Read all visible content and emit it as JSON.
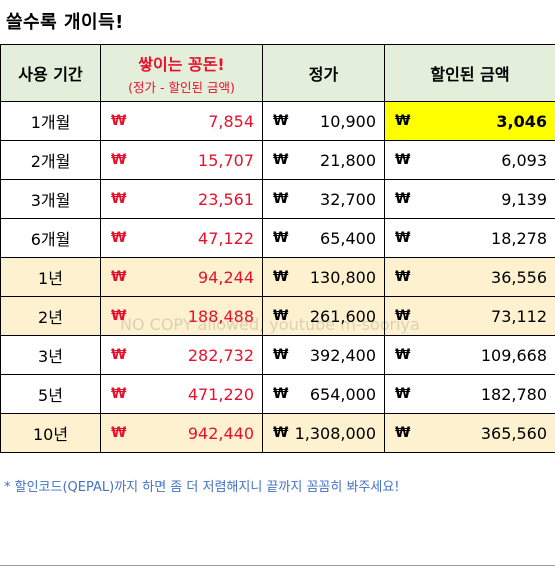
{
  "title": "쓸수록 개이득!",
  "header": {
    "period": "사용 기간",
    "savings": "쌓이는 꽁돈!",
    "savings_sub": "(정가 - 할인된 금액)",
    "price": "정가",
    "discounted": "할인된 금액"
  },
  "currency": "₩",
  "rows": [
    {
      "period": "1개월",
      "savings": "7,854",
      "price": "10,900",
      "discounted": "3,046",
      "highlight": false
    },
    {
      "period": "2개월",
      "savings": "15,707",
      "price": "21,800",
      "discounted": "6,093",
      "highlight": false
    },
    {
      "period": "3개월",
      "savings": "23,561",
      "price": "32,700",
      "discounted": "9,139",
      "highlight": false
    },
    {
      "period": "6개월",
      "savings": "47,122",
      "price": "65,400",
      "discounted": "18,278",
      "highlight": false
    },
    {
      "period": "1년",
      "savings": "94,244",
      "price": "130,800",
      "discounted": "36,556",
      "highlight": true
    },
    {
      "period": "2년",
      "savings": "188,488",
      "price": "261,600",
      "discounted": "73,112",
      "highlight": true
    },
    {
      "period": "3년",
      "savings": "282,732",
      "price": "392,400",
      "discounted": "109,668",
      "highlight": false
    },
    {
      "period": "5년",
      "savings": "471,220",
      "price": "654,000",
      "discounted": "182,780",
      "highlight": false
    },
    {
      "period": "10년",
      "savings": "942,440",
      "price": "1,308,000",
      "discounted": "365,560",
      "highlight": true
    }
  ],
  "watermark": "NO COPY allowed, youtube m-sooriya",
  "footnote": "* 할인코드(QEPAL)까지 하면 좀 더 저렴해지니 끝까지 꼼꼼히 봐주세요!",
  "colors": {
    "header_bg": "#e3efda",
    "highlight_row": "#fdf1cf",
    "highlight_cell": "#ffff00",
    "red_text": "#e8112d",
    "footnote": "#4472c4"
  }
}
